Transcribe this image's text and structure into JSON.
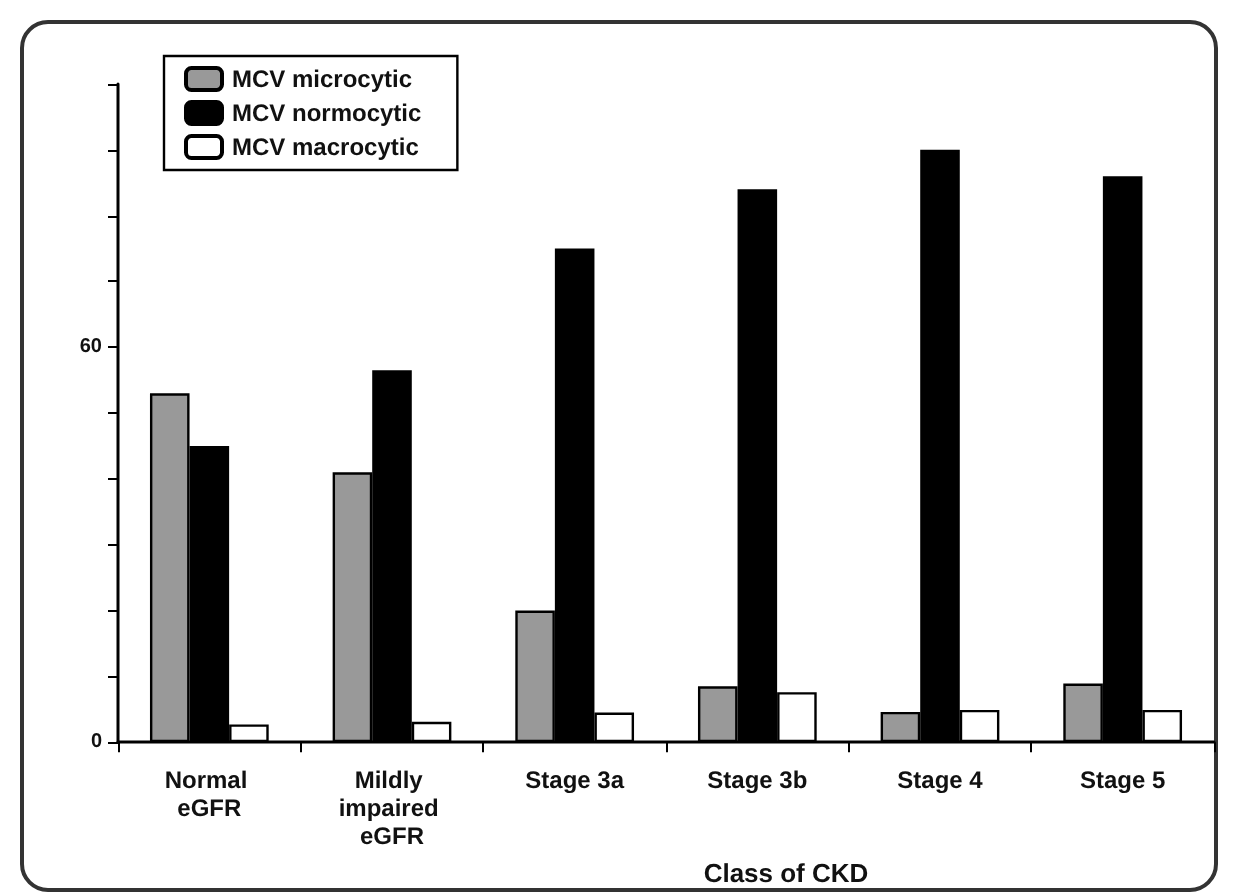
{
  "chart_data": {
    "type": "bar",
    "xlabel": "Class of CKD",
    "categories": [
      "Normal eGFR",
      "Mildly impaired eGFR",
      "Stage 3a",
      "Stage 3b",
      "Stage 4",
      "Stage 5"
    ],
    "series": [
      {
        "name": "MCV microcytic",
        "color": "#999999",
        "values": [
          53,
          41,
          20,
          8.5,
          4.6,
          8.9
        ]
      },
      {
        "name": "MCV normocytic",
        "color": "#000000",
        "values": [
          45,
          56.5,
          75,
          84,
          90,
          86
        ]
      },
      {
        "name": "MCV macrocytic",
        "color": "#ffffff",
        "values": [
          2.7,
          3.1,
          4.5,
          7.6,
          4.9,
          4.9
        ]
      }
    ],
    "ylim": [
      0,
      100
    ],
    "yticks": [
      0,
      {
        "value": 10,
        "label": null
      },
      {
        "value": 20,
        "label": null
      },
      {
        "value": 30,
        "label": null
      },
      {
        "value": 40,
        "label": null
      },
      {
        "value": 50,
        "label": null
      },
      60,
      {
        "value": 70,
        "label": null
      },
      {
        "value": 80,
        "label": null
      },
      {
        "value": 90,
        "label": null
      },
      {
        "value": 100,
        "label": null
      }
    ],
    "grid": false,
    "legend": "top left"
  }
}
